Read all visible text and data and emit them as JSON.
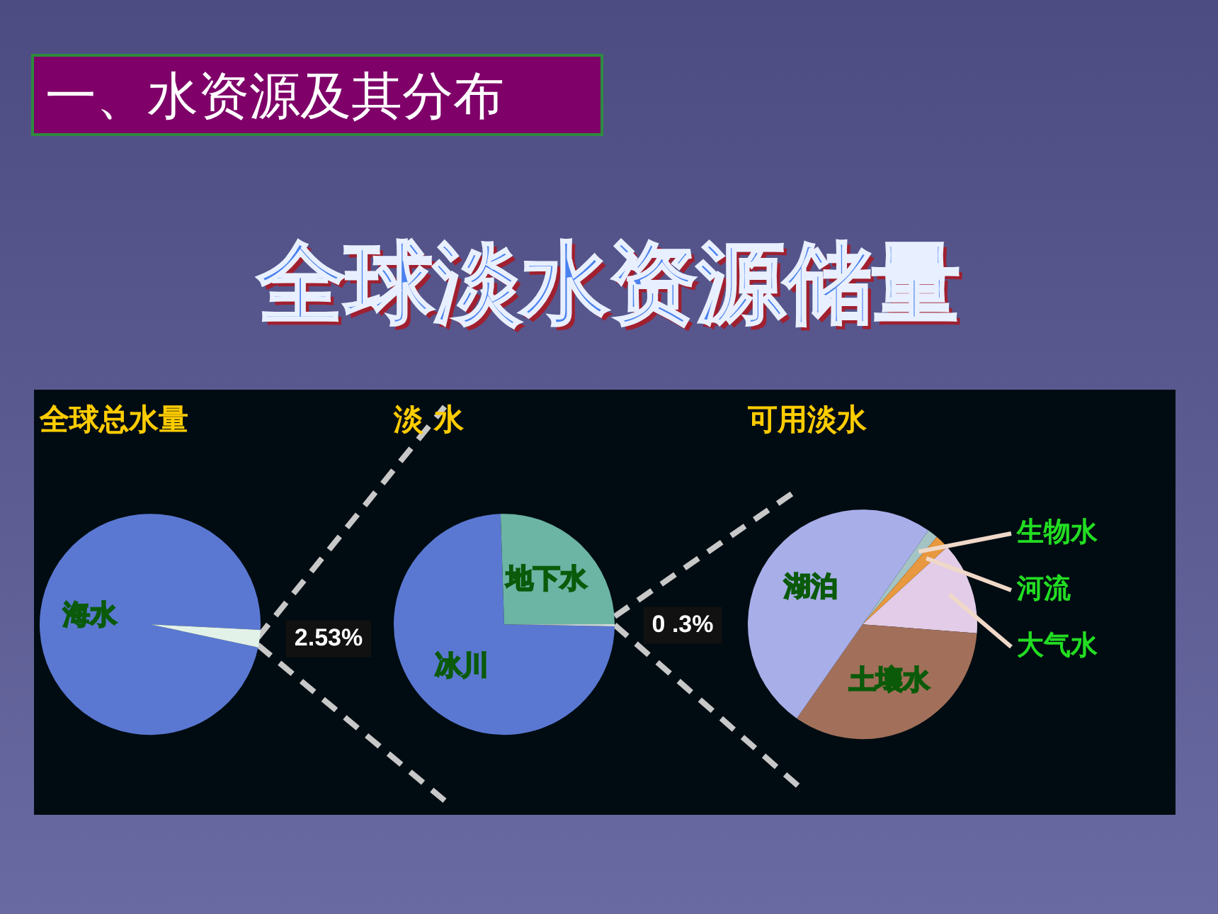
{
  "chart_data": [
    {
      "type": "pie",
      "title": "全球总水量",
      "annotations": [
        "一、水资源及其分布",
        "全球淡水资源储量"
      ],
      "legend": false,
      "categories": [
        "海水",
        null
      ],
      "values": [
        97.47,
        2.53
      ],
      "colors": [
        "#5a78d2",
        "#e2f2e8"
      ],
      "value_labels": [
        null,
        "2.53%"
      ]
    },
    {
      "type": "pie",
      "title": "淡 水",
      "legend": false,
      "categories": [
        "冰川",
        "地下水",
        null
      ],
      "values": [
        74.2,
        25.5,
        0.3
      ],
      "colors": [
        "#5a78d2",
        "#6cb4a4",
        "#d4dcdc"
      ],
      "value_labels": [
        null,
        null,
        "0 .3%"
      ]
    },
    {
      "type": "pie",
      "title": "可用淡水",
      "legend": false,
      "categories": [
        "生物水",
        "河流",
        "大气水",
        "土壤水",
        "湖泊"
      ],
      "values": [
        1.5,
        2,
        13,
        33.5,
        50
      ],
      "colors": [
        "#a4c4c4",
        "#e8983e",
        "#e2cce8",
        "#a2705a",
        "#a8aee8"
      ]
    }
  ]
}
